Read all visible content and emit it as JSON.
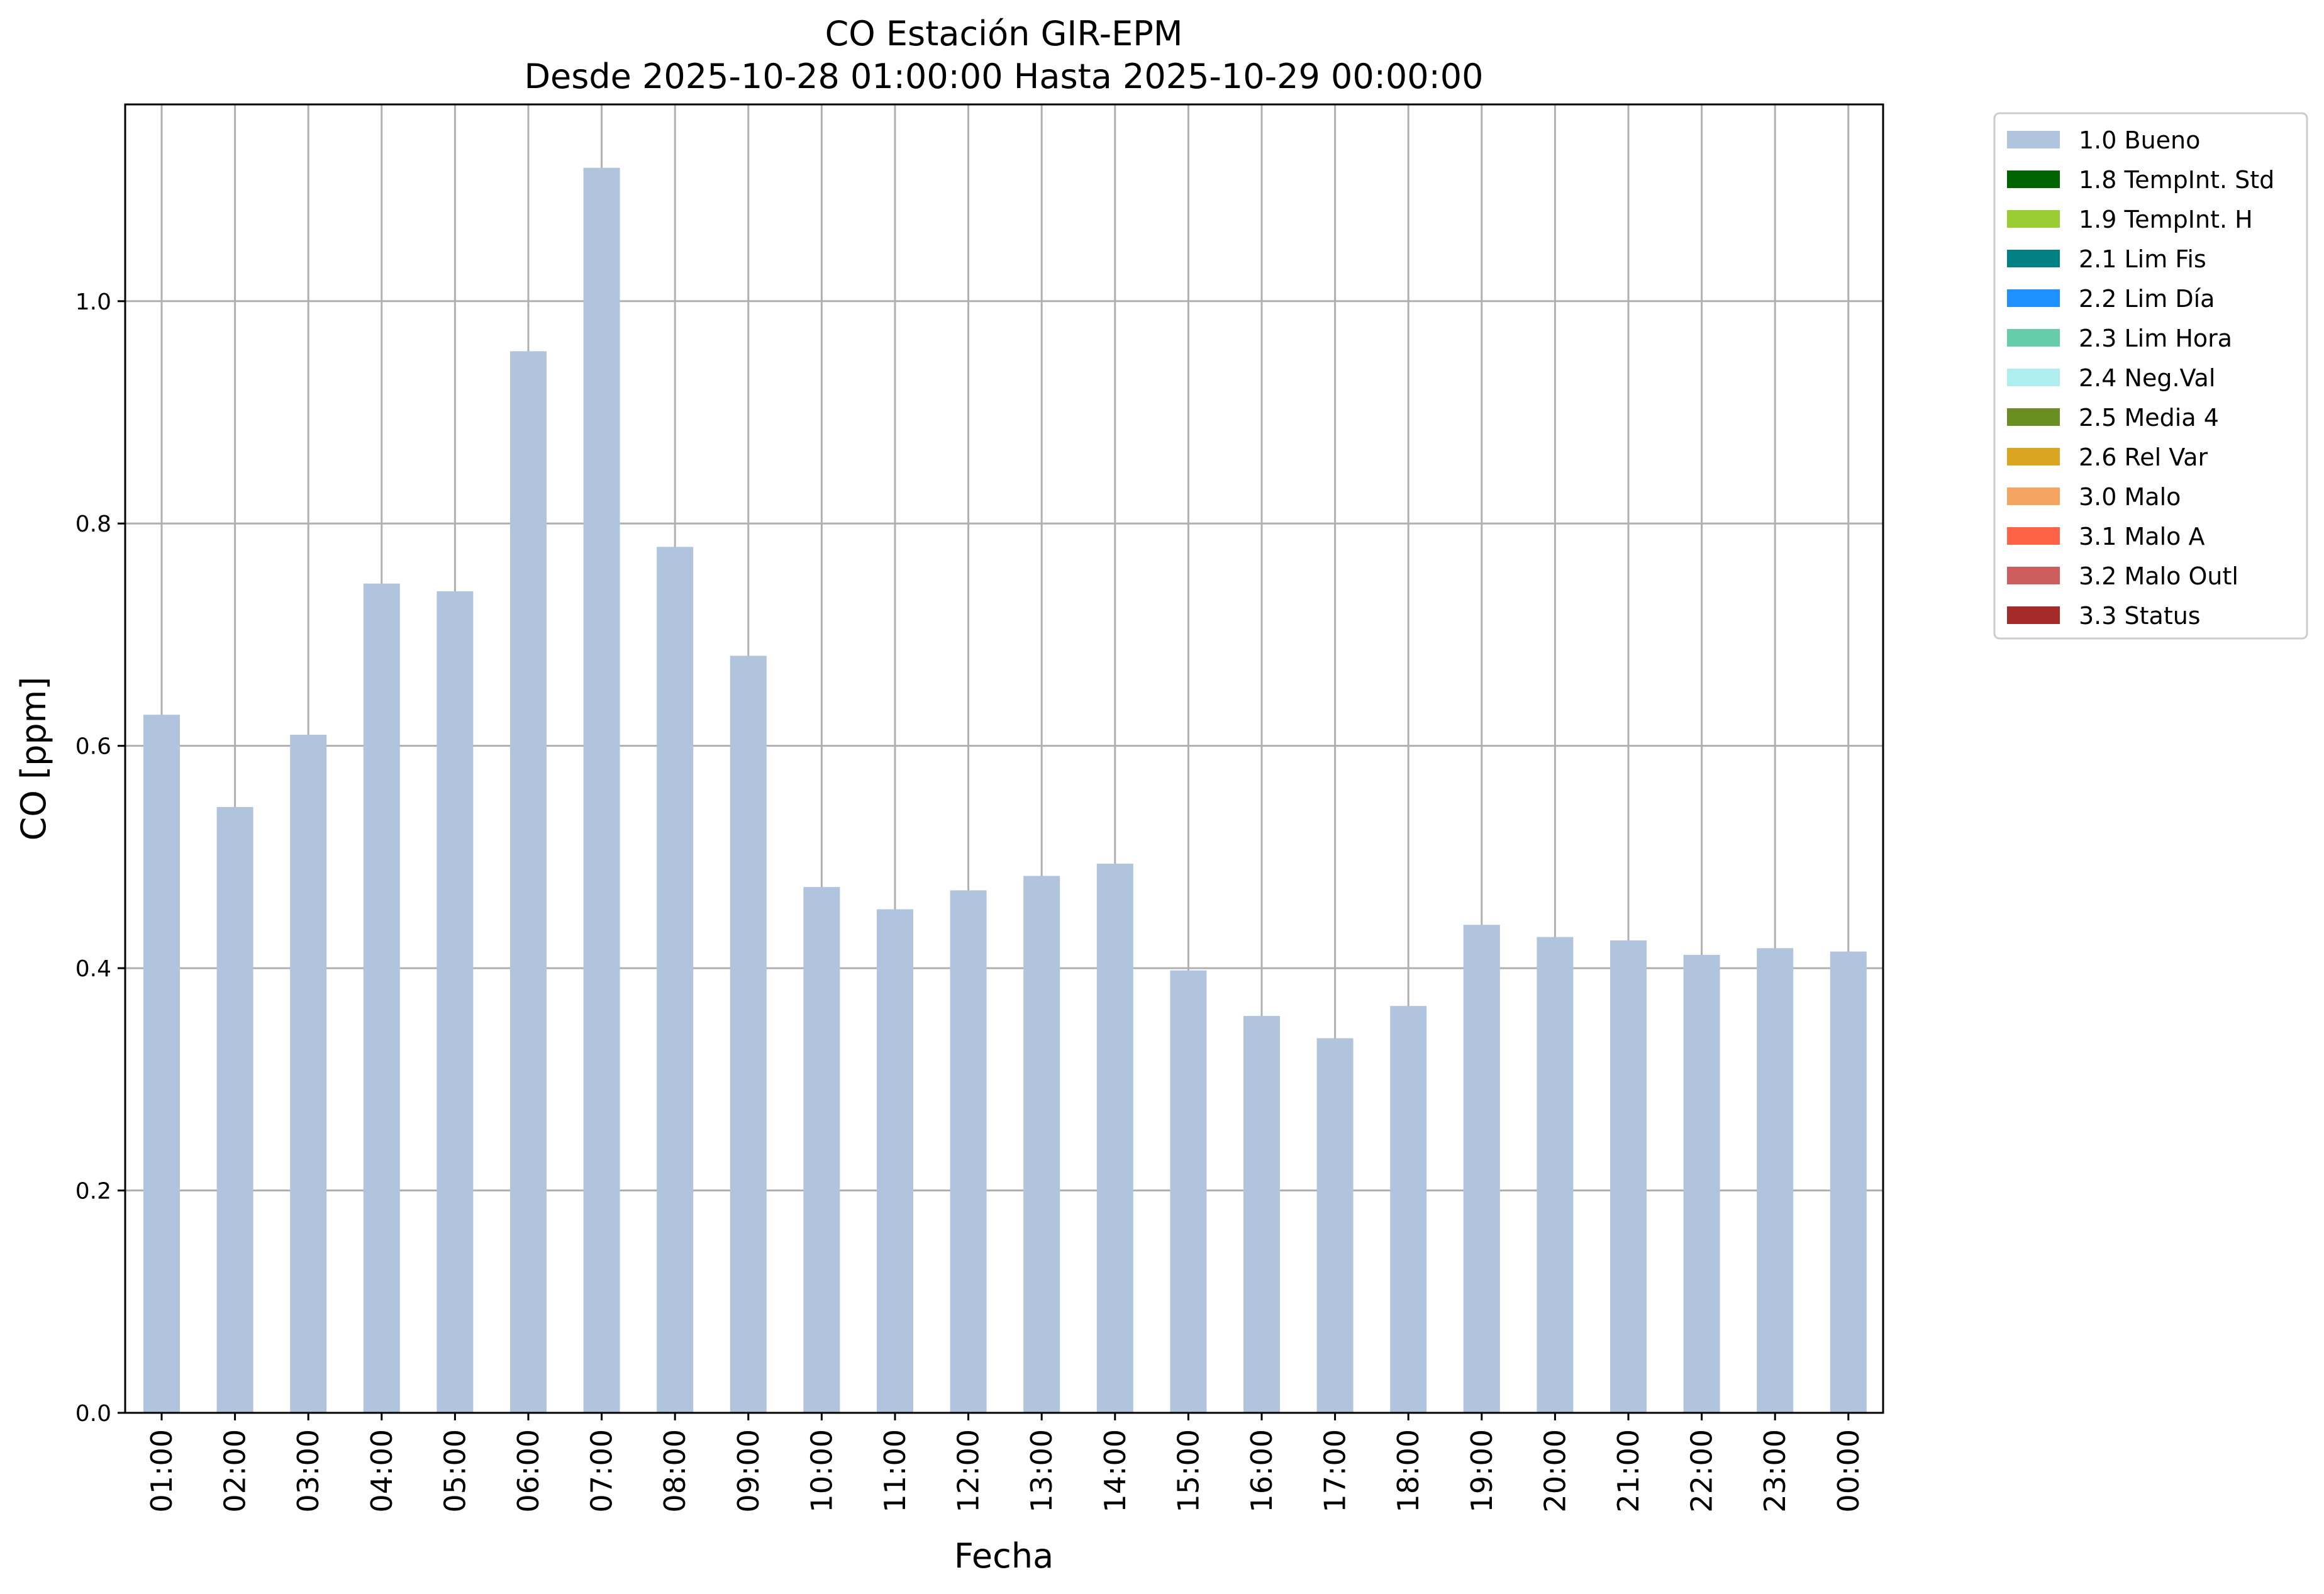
{
  "chart_data": {
    "type": "bar",
    "title": "CO Estación GIR-EPM",
    "subtitle": "Desde 2025-10-28 01:00:00 Hasta 2025-10-29 00:00:00",
    "xlabel": "Fecha",
    "ylabel": "CO [ppm]",
    "ylim": [
      0,
      1.177
    ],
    "yticks": [
      "0.0",
      "0.2",
      "0.4",
      "0.6",
      "0.8",
      "1.0"
    ],
    "ytick_values": [
      0,
      0.2,
      0.4,
      0.6,
      0.8,
      1.0
    ],
    "grid": true,
    "legend_position": "outside-top-right",
    "categories": [
      "01:00",
      "02:00",
      "03:00",
      "04:00",
      "05:00",
      "06:00",
      "07:00",
      "08:00",
      "09:00",
      "10:00",
      "11:00",
      "12:00",
      "13:00",
      "14:00",
      "15:00",
      "16:00",
      "17:00",
      "18:00",
      "19:00",
      "20:00",
      "21:00",
      "22:00",
      "23:00",
      "00:00"
    ],
    "values": [
      0.628,
      0.545,
      0.61,
      0.746,
      0.739,
      0.955,
      1.12,
      0.779,
      0.681,
      0.473,
      0.453,
      0.47,
      0.483,
      0.494,
      0.398,
      0.357,
      0.337,
      0.366,
      0.439,
      0.428,
      0.425,
      0.412,
      0.418,
      0.415
    ],
    "bar_color": "#b0c4de",
    "legend": [
      {
        "label": "1.0 Bueno",
        "color": "#b0c4de"
      },
      {
        "label": "1.8 TempInt. Std",
        "color": "#006400"
      },
      {
        "label": "1.9 TempInt. H",
        "color": "#9acd32"
      },
      {
        "label": "2.1 Lim Fis",
        "color": "#008080"
      },
      {
        "label": "2.2 Lim Día",
        "color": "#1e90ff"
      },
      {
        "label": "2.3 Lim Hora",
        "color": "#66cdaa"
      },
      {
        "label": "2.4 Neg.Val",
        "color": "#afeeee"
      },
      {
        "label": "2.5 Media 4",
        "color": "#6b8e23"
      },
      {
        "label": "2.6 Rel Var",
        "color": "#daa520"
      },
      {
        "label": "3.0 Malo",
        "color": "#f4a460"
      },
      {
        "label": "3.1 Malo A",
        "color": "#ff6347"
      },
      {
        "label": "3.2 Malo Outl",
        "color": "#cd5c5c"
      },
      {
        "label": "3.3 Status",
        "color": "#a52a2a"
      }
    ]
  }
}
